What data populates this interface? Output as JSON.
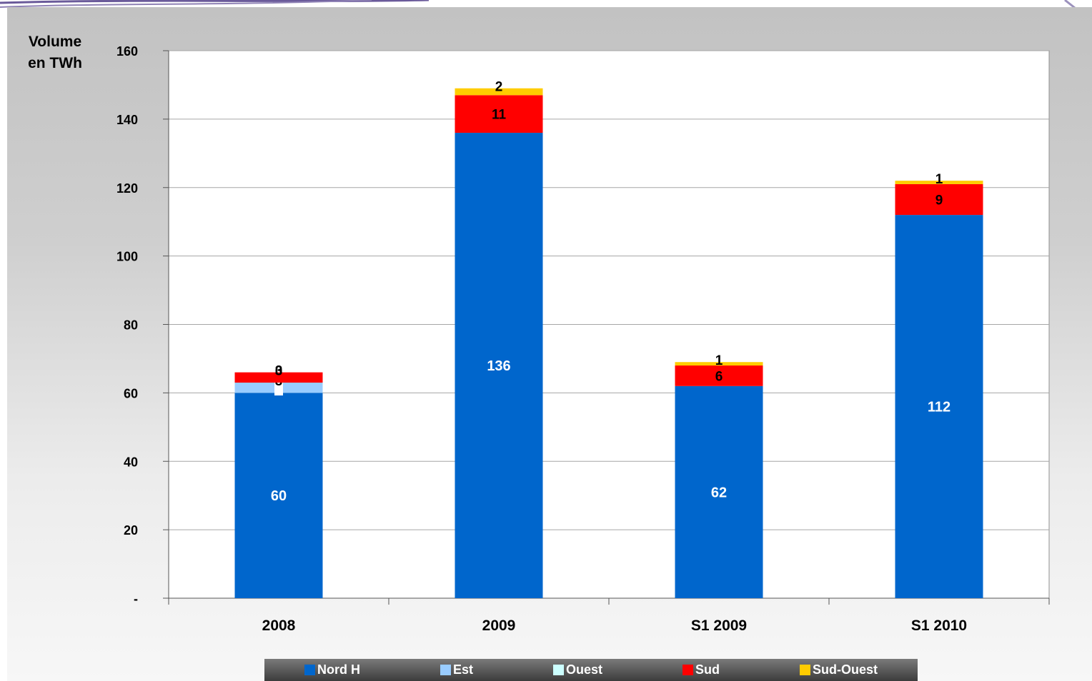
{
  "chart_data": {
    "type": "bar",
    "stacked": true,
    "ylabel": "Volume en TWh",
    "ylabel_lines": [
      "Volume",
      "en TWh"
    ],
    "ylim": [
      0,
      160
    ],
    "yticks": [
      0,
      20,
      40,
      60,
      80,
      100,
      120,
      140,
      160
    ],
    "ytick_labels": [
      "-",
      "20",
      "40",
      "60",
      "80",
      "100",
      "120",
      "140",
      "160"
    ],
    "grid": true,
    "legend_position": "bottom",
    "categories": [
      "2008",
      "2009",
      "S1 2009",
      "S1 2010"
    ],
    "series": [
      {
        "name": "Nord H",
        "color": "#0066cc",
        "label_color": "#ffffff",
        "values": [
          60,
          136,
          62,
          112
        ],
        "labels": [
          "60",
          "136",
          "62",
          "112"
        ]
      },
      {
        "name": "Est",
        "color": "#99ccff",
        "label_color": "#000000",
        "values": [
          3,
          0,
          0,
          0
        ],
        "labels": [
          "3",
          "",
          "",
          ""
        ]
      },
      {
        "name": "Ouest",
        "color": "#ccffff",
        "label_color": "#000000",
        "values": [
          0,
          0,
          0,
          0
        ],
        "labels": [
          "",
          "",
          "",
          ""
        ]
      },
      {
        "name": "Sud",
        "color": "#ff0000",
        "label_color": "#000000",
        "values": [
          3,
          11,
          6,
          9
        ],
        "labels": [
          "3",
          "11",
          "6",
          "9"
        ]
      },
      {
        "name": "Sud-Ouest",
        "color": "#ffcc00",
        "label_color": "#000000",
        "values": [
          0,
          2,
          1,
          1
        ],
        "labels": [
          "0",
          "2",
          "1",
          "1"
        ]
      }
    ]
  }
}
